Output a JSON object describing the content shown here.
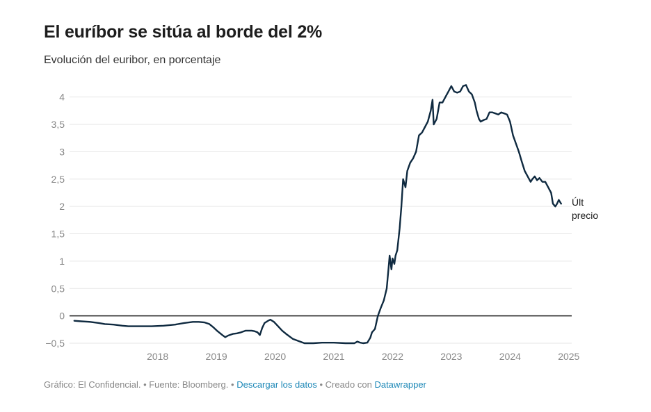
{
  "header": {
    "title": "El euríbor se sitúa al borde del 2%",
    "subtitle": "Evolución del euribor, en porcentaje"
  },
  "footer": {
    "source_text": "Gráfico: El Confidencial. • Fuente: Bloomberg. •",
    "download_link": "Descargar los datos",
    "created_text": "• Creado con",
    "tool_link": "Datawrapper"
  },
  "colors": {
    "line": "#0f2a40",
    "zero_line": "#1d1d1d",
    "grid": "#e6e6e6",
    "tick_text": "#888888",
    "link": "#1d88b7"
  },
  "chart_data": {
    "type": "line",
    "title": "El euríbor se sitúa al borde del 2%",
    "subtitle": "Evolución del euribor, en porcentaje",
    "xlabel": "",
    "ylabel": "",
    "xlim": [
      2017.0,
      2025.55
    ],
    "ylim": [
      -0.5,
      4.25
    ],
    "y_ticks": [
      4,
      3.5,
      3,
      2.5,
      2,
      1.5,
      1,
      0.5,
      0,
      -0.5
    ],
    "y_tick_labels": [
      "4",
      "3,5",
      "3",
      "2,5",
      "2",
      "1,5",
      "1",
      "0,5",
      "0",
      "−0,5"
    ],
    "x_ticks": [
      2018,
      2019,
      2020,
      2021,
      2022,
      2023,
      2024,
      2025
    ],
    "x_tick_labels": [
      "2018",
      "2019",
      "2020",
      "2021",
      "2022",
      "2023",
      "2024",
      "2025"
    ],
    "grid": true,
    "end_label": [
      "Últ",
      "precio"
    ],
    "series": [
      {
        "values": [
          [
            2017.08,
            -0.09
          ],
          [
            2017.2,
            -0.1
          ],
          [
            2017.35,
            -0.11
          ],
          [
            2017.5,
            -0.13
          ],
          [
            2017.6,
            -0.15
          ],
          [
            2017.75,
            -0.16
          ],
          [
            2017.9,
            -0.18
          ],
          [
            2018.0,
            -0.19
          ],
          [
            2018.2,
            -0.19
          ],
          [
            2018.4,
            -0.19
          ],
          [
            2018.6,
            -0.18
          ],
          [
            2018.8,
            -0.16
          ],
          [
            2018.95,
            -0.13
          ],
          [
            2019.1,
            -0.11
          ],
          [
            2019.2,
            -0.11
          ],
          [
            2019.3,
            -0.12
          ],
          [
            2019.38,
            -0.15
          ],
          [
            2019.45,
            -0.21
          ],
          [
            2019.52,
            -0.28
          ],
          [
            2019.6,
            -0.35
          ],
          [
            2019.65,
            -0.39
          ],
          [
            2019.7,
            -0.36
          ],
          [
            2019.78,
            -0.33
          ],
          [
            2019.85,
            -0.32
          ],
          [
            2019.92,
            -0.3
          ],
          [
            2020.0,
            -0.27
          ],
          [
            2020.1,
            -0.27
          ],
          [
            2020.15,
            -0.28
          ],
          [
            2020.2,
            -0.3
          ],
          [
            2020.24,
            -0.35
          ],
          [
            2020.28,
            -0.22
          ],
          [
            2020.32,
            -0.13
          ],
          [
            2020.38,
            -0.09
          ],
          [
            2020.42,
            -0.07
          ],
          [
            2020.48,
            -0.11
          ],
          [
            2020.55,
            -0.19
          ],
          [
            2020.62,
            -0.27
          ],
          [
            2020.7,
            -0.34
          ],
          [
            2020.8,
            -0.42
          ],
          [
            2020.9,
            -0.46
          ],
          [
            2021.0,
            -0.5
          ],
          [
            2021.15,
            -0.5
          ],
          [
            2021.3,
            -0.49
          ],
          [
            2021.5,
            -0.49
          ],
          [
            2021.7,
            -0.5
          ],
          [
            2021.85,
            -0.5
          ],
          [
            2021.9,
            -0.47
          ],
          [
            2021.95,
            -0.49
          ],
          [
            2022.0,
            -0.5
          ],
          [
            2022.07,
            -0.49
          ],
          [
            2022.12,
            -0.4
          ],
          [
            2022.15,
            -0.3
          ],
          [
            2022.2,
            -0.24
          ],
          [
            2022.25,
            0.0
          ],
          [
            2022.3,
            0.15
          ],
          [
            2022.35,
            0.28
          ],
          [
            2022.4,
            0.5
          ],
          [
            2022.43,
            0.85
          ],
          [
            2022.45,
            1.1
          ],
          [
            2022.48,
            0.85
          ],
          [
            2022.5,
            1.05
          ],
          [
            2022.53,
            0.95
          ],
          [
            2022.55,
            1.1
          ],
          [
            2022.58,
            1.2
          ],
          [
            2022.62,
            1.6
          ],
          [
            2022.65,
            2.0
          ],
          [
            2022.68,
            2.5
          ],
          [
            2022.72,
            2.35
          ],
          [
            2022.75,
            2.65
          ],
          [
            2022.8,
            2.8
          ],
          [
            2022.85,
            2.88
          ],
          [
            2022.9,
            3.0
          ],
          [
            2022.95,
            3.3
          ],
          [
            2023.0,
            3.35
          ],
          [
            2023.05,
            3.45
          ],
          [
            2023.1,
            3.55
          ],
          [
            2023.15,
            3.75
          ],
          [
            2023.18,
            3.95
          ],
          [
            2023.2,
            3.5
          ],
          [
            2023.25,
            3.6
          ],
          [
            2023.3,
            3.9
          ],
          [
            2023.35,
            3.9
          ],
          [
            2023.4,
            4.0
          ],
          [
            2023.45,
            4.1
          ],
          [
            2023.5,
            4.2
          ],
          [
            2023.55,
            4.1
          ],
          [
            2023.6,
            4.08
          ],
          [
            2023.65,
            4.1
          ],
          [
            2023.7,
            4.2
          ],
          [
            2023.75,
            4.22
          ],
          [
            2023.8,
            4.1
          ],
          [
            2023.85,
            4.05
          ],
          [
            2023.9,
            3.9
          ],
          [
            2023.93,
            3.75
          ],
          [
            2023.97,
            3.6
          ],
          [
            2024.0,
            3.55
          ],
          [
            2024.05,
            3.58
          ],
          [
            2024.1,
            3.6
          ],
          [
            2024.15,
            3.72
          ],
          [
            2024.2,
            3.72
          ],
          [
            2024.25,
            3.7
          ],
          [
            2024.3,
            3.68
          ],
          [
            2024.35,
            3.72
          ],
          [
            2024.4,
            3.7
          ],
          [
            2024.45,
            3.68
          ],
          [
            2024.5,
            3.55
          ],
          [
            2024.55,
            3.3
          ],
          [
            2024.6,
            3.15
          ],
          [
            2024.65,
            3.0
          ],
          [
            2024.7,
            2.82
          ],
          [
            2024.75,
            2.65
          ],
          [
            2024.8,
            2.55
          ],
          [
            2024.85,
            2.45
          ],
          [
            2024.88,
            2.5
          ],
          [
            2024.92,
            2.55
          ],
          [
            2024.96,
            2.48
          ],
          [
            2025.0,
            2.52
          ],
          [
            2025.05,
            2.45
          ],
          [
            2025.1,
            2.45
          ],
          [
            2025.15,
            2.35
          ],
          [
            2025.2,
            2.25
          ],
          [
            2025.23,
            2.05
          ],
          [
            2025.27,
            2.0
          ],
          [
            2025.3,
            2.05
          ],
          [
            2025.33,
            2.12
          ],
          [
            2025.37,
            2.05
          ]
        ]
      }
    ]
  }
}
